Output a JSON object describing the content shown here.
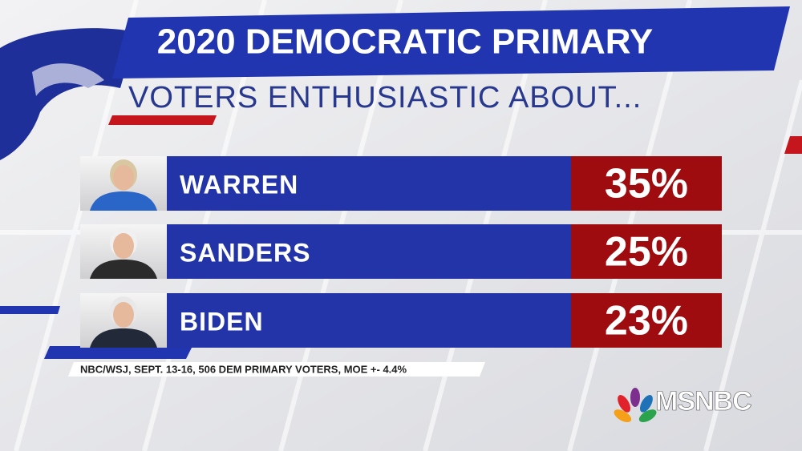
{
  "title": "2020 DEMOCRATIC PRIMARY",
  "subtitle": "VOTERS ENTHUSIASTIC ABOUT...",
  "rows": [
    {
      "name": "WARREN",
      "value": "35%"
    },
    {
      "name": "SANDERS",
      "value": "25%"
    },
    {
      "name": "BIDEN",
      "value": "23%"
    }
  ],
  "source": "NBC/WSJ, SEPT. 13-16, 506 DEM PRIMARY VOTERS, MOE +- 4.4%",
  "logo": "MSNBC"
}
